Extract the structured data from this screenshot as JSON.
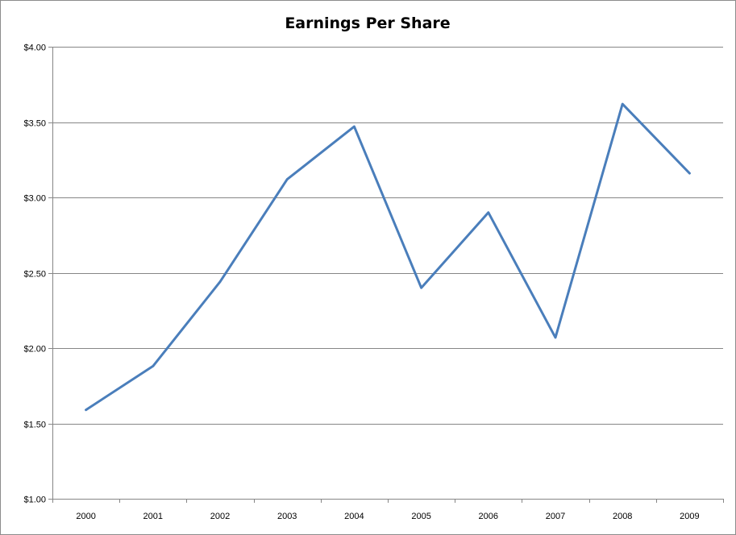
{
  "chart_data": {
    "type": "line",
    "title": "Earnings Per Share",
    "xlabel": "",
    "ylabel": "",
    "categories": [
      "2000",
      "2001",
      "2002",
      "2003",
      "2004",
      "2005",
      "2006",
      "2007",
      "2008",
      "2009"
    ],
    "series": [
      {
        "values": [
          1.59,
          1.88,
          2.44,
          3.12,
          3.47,
          2.4,
          2.9,
          2.07,
          3.62,
          3.16
        ],
        "color": "#4a7ebb"
      }
    ],
    "ylim": [
      1.0,
      4.0
    ],
    "yticks": [
      1.0,
      1.5,
      2.0,
      2.5,
      3.0,
      3.5,
      4.0
    ],
    "ytick_labels": [
      "$1.00",
      "$1.50",
      "$2.00",
      "$2.50",
      "$3.00",
      "$3.50",
      "$4.00"
    ],
    "grid": true,
    "legend": "none"
  }
}
